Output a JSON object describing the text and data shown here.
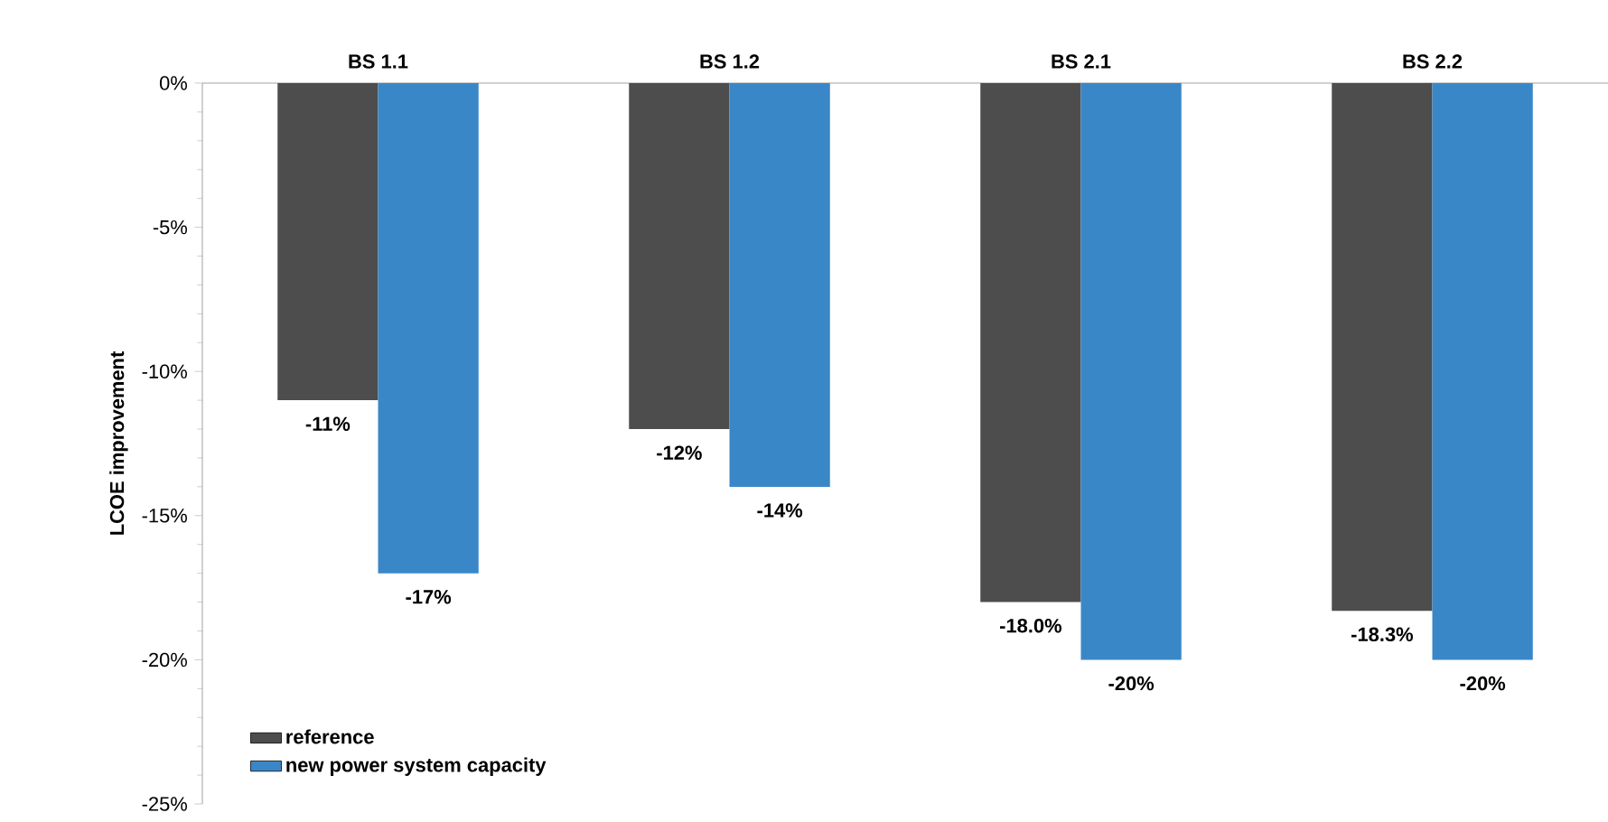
{
  "chart_data": {
    "type": "bar",
    "ylabel": "LCOE improvement",
    "categories": [
      "BS 1.1",
      "BS 1.2",
      "BS 2.1",
      "BS 2.2"
    ],
    "series": [
      {
        "name": "reference",
        "color": "#4d4d4d",
        "values": [
          -11,
          -12,
          -18.0,
          -18.3
        ],
        "value_labels": [
          "-11%",
          "-12%",
          "-18.0%",
          "-18.3%"
        ]
      },
      {
        "name": "new power system capacity",
        "color": "#3a87c8",
        "values": [
          -17,
          -14,
          -20,
          -20
        ],
        "value_labels": [
          "-17%",
          "-14%",
          "-20%",
          "-20%"
        ]
      }
    ],
    "ylim": [
      -25,
      0
    ],
    "yticks": [
      {
        "value": -25,
        "label": "-25%"
      },
      {
        "value": -20,
        "label": "-20%"
      },
      {
        "value": -15,
        "label": "-15%"
      },
      {
        "value": -10,
        "label": "-10%"
      },
      {
        "value": -5,
        "label": "-5%"
      },
      {
        "value": 0,
        "label": "0%"
      }
    ],
    "grid": false,
    "legend": "bottom left"
  }
}
